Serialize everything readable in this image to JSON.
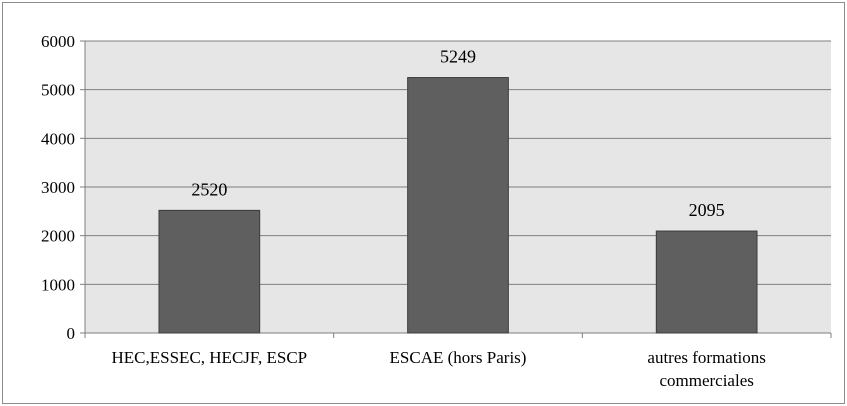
{
  "chart_data": {
    "type": "bar",
    "title": "",
    "xlabel": "",
    "ylabel": "",
    "categories": [
      "HEC,ESSEC, HECJF, ESCP",
      "ESCAE (hors Paris)",
      "autres formations commerciales"
    ],
    "category_lines": [
      [
        "HEC,ESSEC, HECJF, ESCP"
      ],
      [
        "ESCAE (hors Paris)"
      ],
      [
        "autres formations",
        "commerciales"
      ]
    ],
    "values": [
      2520,
      5249,
      2095
    ],
    "value_labels": [
      "2520",
      "5249",
      "2095"
    ],
    "ylim": [
      0,
      6000
    ],
    "yticks": [
      0,
      1000,
      2000,
      3000,
      4000,
      5000,
      6000
    ],
    "grid": true,
    "legend": "none",
    "colors": {
      "bar": "#5f5f5f",
      "bar_stroke": "#3c3c3c",
      "plot_bg": "#e6e6e6",
      "grid": "#7f7f7f"
    }
  }
}
